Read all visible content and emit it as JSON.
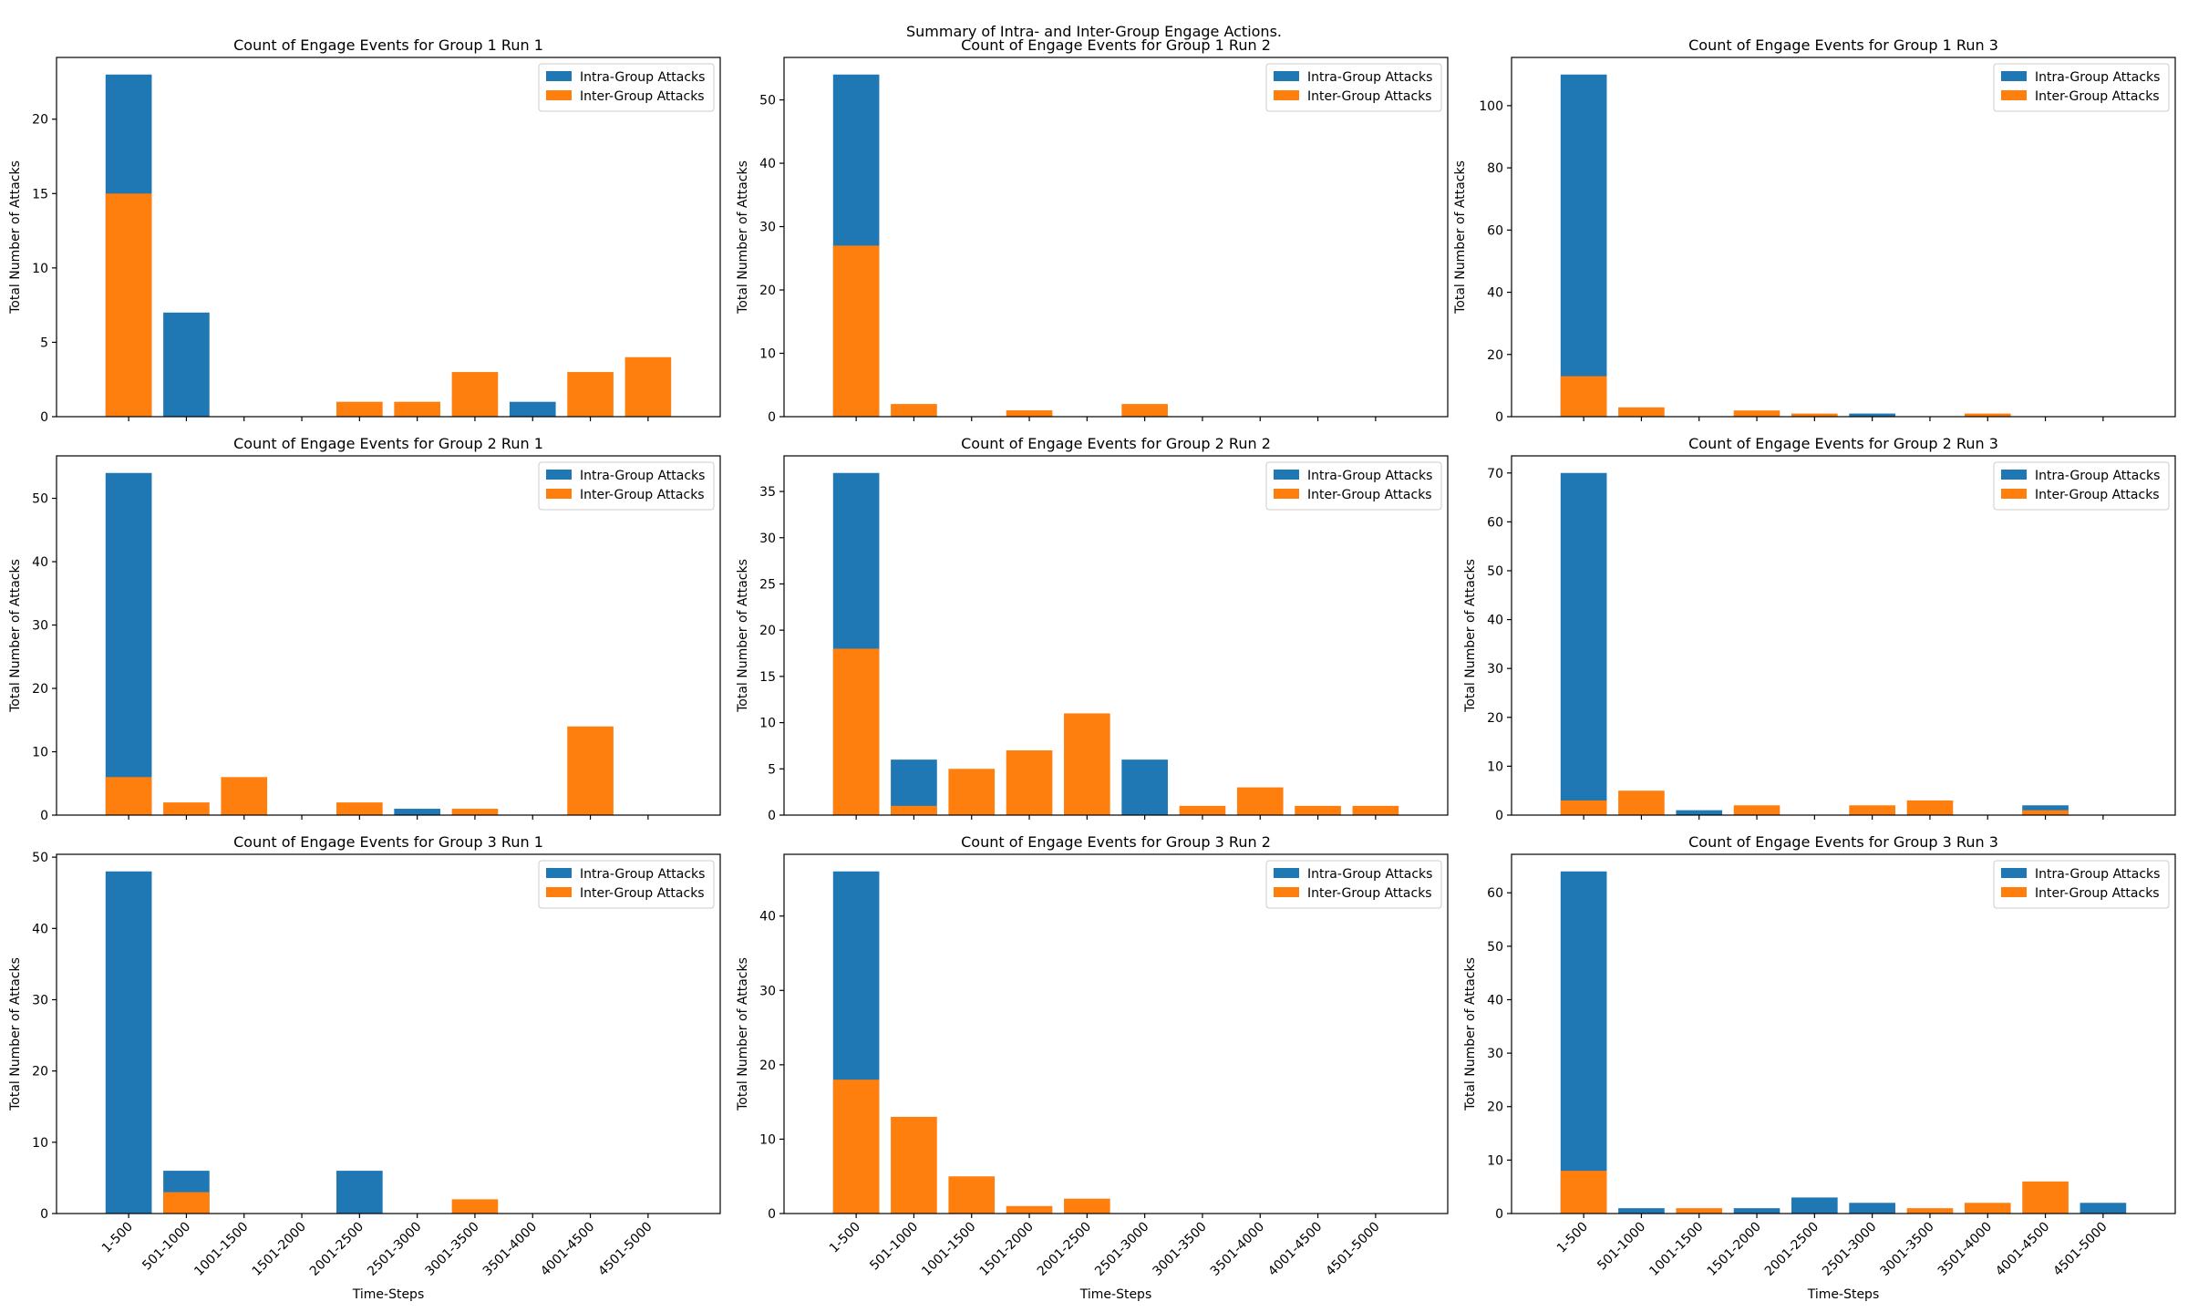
{
  "figure": {
    "suptitle": "Summary of Intra- and Inter-Group Engage Actions."
  },
  "legend": {
    "intra": "Intra-Group Attacks",
    "inter": "Inter-Group Attacks"
  },
  "colors": {
    "intra": "#1f77b4",
    "inter": "#ff7f0e"
  },
  "chart_data": [
    {
      "type": "bar",
      "stacked": "overlay",
      "title": "Count of Engage Events for Group 1 Run 1",
      "xlabel": "",
      "ylabel": "Total Number of Attacks",
      "categories": [
        "1-500",
        "501-1000",
        "1001-1500",
        "1501-2000",
        "2001-2500",
        "2501-3000",
        "3001-3500",
        "3501-4000",
        "4001-4500",
        "4501-5000"
      ],
      "series": [
        {
          "name": "Intra-Group Attacks",
          "values": [
            23,
            7,
            0,
            0,
            0,
            0,
            0,
            1,
            0,
            0
          ]
        },
        {
          "name": "Inter-Group Attacks",
          "values": [
            15,
            0,
            0,
            0,
            1,
            1,
            3,
            0,
            3,
            4
          ]
        }
      ],
      "ylim": [
        0,
        24.15
      ],
      "yticks": [
        0,
        5,
        10,
        15,
        20
      ],
      "legend_position": "upper right"
    },
    {
      "type": "bar",
      "stacked": "overlay",
      "title": "Count of Engage Events for Group 1 Run 2",
      "xlabel": "",
      "ylabel": "Total Number of Attacks",
      "categories": [
        "1-500",
        "501-1000",
        "1001-1500",
        "1501-2000",
        "2001-2500",
        "2501-3000",
        "3001-3500",
        "3501-4000",
        "4001-4500",
        "4501-5000"
      ],
      "series": [
        {
          "name": "Intra-Group Attacks",
          "values": [
            54,
            0,
            0,
            0,
            0,
            0,
            0,
            0,
            0,
            0
          ]
        },
        {
          "name": "Inter-Group Attacks",
          "values": [
            27,
            2,
            0,
            1,
            0,
            2,
            0,
            0,
            0,
            0
          ]
        }
      ],
      "ylim": [
        0,
        56.7
      ],
      "yticks": [
        0,
        10,
        20,
        30,
        40,
        50
      ],
      "legend_position": "upper right"
    },
    {
      "type": "bar",
      "stacked": "overlay",
      "title": "Count of Engage Events for Group 1 Run 3",
      "xlabel": "",
      "ylabel": "Total Number of Attacks",
      "categories": [
        "1-500",
        "501-1000",
        "1001-1500",
        "1501-2000",
        "2001-2500",
        "2501-3000",
        "3001-3500",
        "3501-4000",
        "4001-4500",
        "4501-5000"
      ],
      "series": [
        {
          "name": "Intra-Group Attacks",
          "values": [
            110,
            0,
            0,
            0,
            0,
            1,
            0,
            0,
            0,
            0
          ]
        },
        {
          "name": "Inter-Group Attacks",
          "values": [
            13,
            3,
            0,
            2,
            1,
            0,
            0,
            1,
            0,
            0
          ]
        }
      ],
      "ylim": [
        0,
        115.5
      ],
      "yticks": [
        0,
        20,
        40,
        60,
        80,
        100
      ],
      "legend_position": "upper right"
    },
    {
      "type": "bar",
      "stacked": "overlay",
      "title": "Count of Engage Events for Group 2 Run 1",
      "xlabel": "",
      "ylabel": "Total Number of Attacks",
      "categories": [
        "1-500",
        "501-1000",
        "1001-1500",
        "1501-2000",
        "2001-2500",
        "2501-3000",
        "3001-3500",
        "3501-4000",
        "4001-4500",
        "4501-5000"
      ],
      "series": [
        {
          "name": "Intra-Group Attacks",
          "values": [
            54,
            0,
            0,
            0,
            0,
            1,
            0,
            0,
            0,
            0
          ]
        },
        {
          "name": "Inter-Group Attacks",
          "values": [
            6,
            2,
            6,
            0,
            2,
            0,
            1,
            0,
            14,
            0
          ]
        }
      ],
      "ylim": [
        0,
        56.7
      ],
      "yticks": [
        0,
        10,
        20,
        30,
        40,
        50
      ],
      "legend_position": "upper right"
    },
    {
      "type": "bar",
      "stacked": "overlay",
      "title": "Count of Engage Events for Group 2 Run 2",
      "xlabel": "",
      "ylabel": "Total Number of Attacks",
      "categories": [
        "1-500",
        "501-1000",
        "1001-1500",
        "1501-2000",
        "2001-2500",
        "2501-3000",
        "3001-3500",
        "3501-4000",
        "4001-4500",
        "4501-5000"
      ],
      "series": [
        {
          "name": "Intra-Group Attacks",
          "values": [
            37,
            6,
            0,
            0,
            0,
            6,
            0,
            0,
            0,
            0
          ]
        },
        {
          "name": "Inter-Group Attacks",
          "values": [
            18,
            1,
            5,
            7,
            11,
            0,
            1,
            3,
            1,
            1
          ]
        }
      ],
      "ylim": [
        0,
        38.85
      ],
      "yticks": [
        0,
        5,
        10,
        15,
        20,
        25,
        30,
        35
      ],
      "legend_position": "upper right"
    },
    {
      "type": "bar",
      "stacked": "overlay",
      "title": "Count of Engage Events for Group 2 Run 3",
      "xlabel": "",
      "ylabel": "Total Number of Attacks",
      "categories": [
        "1-500",
        "501-1000",
        "1001-1500",
        "1501-2000",
        "2001-2500",
        "2501-3000",
        "3001-3500",
        "3501-4000",
        "4001-4500",
        "4501-5000"
      ],
      "series": [
        {
          "name": "Intra-Group Attacks",
          "values": [
            70,
            0,
            1,
            0,
            0,
            0,
            0,
            0,
            2,
            0
          ]
        },
        {
          "name": "Inter-Group Attacks",
          "values": [
            3,
            5,
            0,
            2,
            0,
            2,
            3,
            0,
            1,
            0
          ]
        }
      ],
      "ylim": [
        0,
        73.5
      ],
      "yticks": [
        0,
        10,
        20,
        30,
        40,
        50,
        60,
        70
      ],
      "legend_position": "upper right"
    },
    {
      "type": "bar",
      "stacked": "overlay",
      "title": "Count of Engage Events for Group 3 Run 1",
      "xlabel": "Time-Steps",
      "ylabel": "Total Number of Attacks",
      "categories": [
        "1-500",
        "501-1000",
        "1001-1500",
        "1501-2000",
        "2001-2500",
        "2501-3000",
        "3001-3500",
        "3501-4000",
        "4001-4500",
        "4501-5000"
      ],
      "series": [
        {
          "name": "Intra-Group Attacks",
          "values": [
            48,
            6,
            0,
            0,
            6,
            0,
            0,
            0,
            0,
            0
          ]
        },
        {
          "name": "Inter-Group Attacks",
          "values": [
            0,
            3,
            0,
            0,
            0,
            0,
            2,
            0,
            0,
            0
          ]
        }
      ],
      "ylim": [
        0,
        50.4
      ],
      "yticks": [
        0,
        10,
        20,
        30,
        40,
        50
      ],
      "legend_position": "upper right"
    },
    {
      "type": "bar",
      "stacked": "overlay",
      "title": "Count of Engage Events for Group 3 Run 2",
      "xlabel": "Time-Steps",
      "ylabel": "Total Number of Attacks",
      "categories": [
        "1-500",
        "501-1000",
        "1001-1500",
        "1501-2000",
        "2001-2500",
        "2501-3000",
        "3001-3500",
        "3501-4000",
        "4001-4500",
        "4501-5000"
      ],
      "series": [
        {
          "name": "Intra-Group Attacks",
          "values": [
            46,
            0,
            0,
            0,
            0,
            0,
            0,
            0,
            0,
            0
          ]
        },
        {
          "name": "Inter-Group Attacks",
          "values": [
            18,
            13,
            5,
            1,
            2,
            0,
            0,
            0,
            0,
            0
          ]
        }
      ],
      "ylim": [
        0,
        48.3
      ],
      "yticks": [
        0,
        10,
        20,
        30,
        40
      ],
      "legend_position": "upper right"
    },
    {
      "type": "bar",
      "stacked": "overlay",
      "title": "Count of Engage Events for Group 3 Run 3",
      "xlabel": "Time-Steps",
      "ylabel": "Total Number of Attacks",
      "categories": [
        "1-500",
        "501-1000",
        "1001-1500",
        "1501-2000",
        "2001-2500",
        "2501-3000",
        "3001-3500",
        "3501-4000",
        "4001-4500",
        "4501-5000"
      ],
      "series": [
        {
          "name": "Intra-Group Attacks",
          "values": [
            64,
            1,
            0,
            1,
            3,
            2,
            0,
            0,
            0,
            2
          ]
        },
        {
          "name": "Inter-Group Attacks",
          "values": [
            8,
            0,
            1,
            0,
            0,
            0,
            1,
            2,
            6,
            0
          ]
        }
      ],
      "ylim": [
        0,
        67.2
      ],
      "yticks": [
        0,
        10,
        20,
        30,
        40,
        50,
        60
      ],
      "legend_position": "upper right"
    }
  ]
}
